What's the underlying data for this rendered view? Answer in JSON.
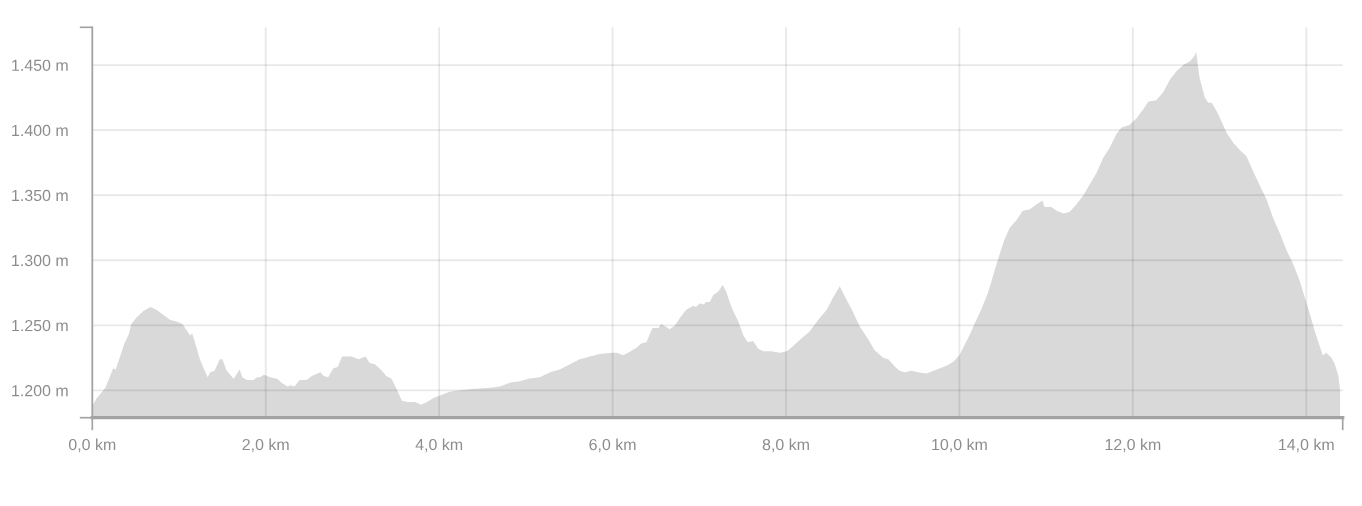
{
  "chart_data": {
    "type": "area",
    "xlim": [
      0,
      14.42
    ],
    "ylim": [
      1179,
      1479
    ],
    "xticks": [
      {
        "value": 0,
        "label": "0,0 km"
      },
      {
        "value": 2,
        "label": "2,0 km"
      },
      {
        "value": 4,
        "label": "4,0 km"
      },
      {
        "value": 6,
        "label": "6,0 km"
      },
      {
        "value": 8,
        "label": "8,0 km"
      },
      {
        "value": 10,
        "label": "10,0 km"
      },
      {
        "value": 12,
        "label": "12,0 km"
      },
      {
        "value": 14,
        "label": "14,0 km"
      },
      {
        "value": 14.42,
        "label": null
      }
    ],
    "yticks": [
      {
        "value": 1179,
        "label": null
      },
      {
        "value": 1200,
        "label": "1.200 m"
      },
      {
        "value": 1250,
        "label": "1.250 m"
      },
      {
        "value": 1300,
        "label": "1.300 m"
      },
      {
        "value": 1350,
        "label": "1.350 m"
      },
      {
        "value": 1400,
        "label": "1.400 m"
      },
      {
        "value": 1450,
        "label": "1.450 m"
      },
      {
        "value": 1479,
        "label": null
      }
    ],
    "grid": true,
    "series": [
      {
        "color": "#d9d9d9",
        "x": [
          0,
          0.05,
          0.09,
          0.15,
          0.2,
          0.24,
          0.27,
          0.32,
          0.37,
          0.42,
          0.45,
          0.51,
          0.59,
          0.67,
          0.74,
          0.82,
          0.9,
          0.97,
          1.04,
          1.07,
          1.11,
          1.13,
          1.15,
          1.18,
          1.24,
          1.29,
          1.33,
          1.36,
          1.41,
          1.47,
          1.5,
          1.55,
          1.63,
          1.66,
          1.7,
          1.73,
          1.78,
          1.86,
          1.9,
          1.93,
          1.98,
          2.05,
          2.13,
          2.18,
          2.25,
          2.29,
          2.33,
          2.39,
          2.47,
          2.53,
          2.63,
          2.67,
          2.72,
          2.78,
          2.83,
          2.88,
          2.99,
          3.07,
          3.15,
          3.2,
          3.26,
          3.34,
          3.39,
          3.45,
          3.51,
          3.57,
          3.64,
          3.72,
          3.79,
          3.86,
          3.93,
          4.01,
          4.12,
          4.24,
          4.39,
          4.59,
          4.7,
          4.82,
          4.93,
          5.03,
          5.16,
          5.28,
          5.39,
          5.51,
          5.62,
          5.74,
          5.85,
          5.99,
          6.05,
          6.12,
          6.18,
          6.28,
          6.33,
          6.39,
          6.46,
          6.53,
          6.56,
          6.61,
          6.66,
          6.72,
          6.78,
          6.85,
          6.93,
          6.96,
          7.01,
          7.05,
          7.08,
          7.12,
          7.16,
          7.22,
          7.27,
          7.31,
          7.35,
          7.39,
          7.45,
          7.51,
          7.56,
          7.62,
          7.68,
          7.74,
          7.83,
          7.93,
          8.01,
          8.08,
          8.18,
          8.27,
          8.37,
          8.47,
          8.54,
          8.62,
          8.68,
          8.76,
          8.85,
          8.95,
          9.02,
          9.12,
          9.18,
          9.26,
          9.31,
          9.37,
          9.45,
          9.52,
          9.62,
          9.74,
          9.85,
          9.93,
          10.0,
          10.06,
          10.12,
          10.18,
          10.25,
          10.33,
          10.41,
          10.47,
          10.52,
          10.58,
          10.66,
          10.73,
          10.81,
          10.89,
          10.96,
          10.98,
          11.06,
          11.12,
          11.2,
          11.27,
          11.35,
          11.43,
          11.5,
          11.58,
          11.66,
          11.73,
          11.81,
          11.87,
          11.96,
          12.04,
          12.12,
          12.18,
          12.27,
          12.35,
          12.43,
          12.5,
          12.58,
          12.66,
          12.71,
          12.73,
          12.77,
          12.83,
          12.87,
          12.91,
          12.98,
          13.08,
          13.16,
          13.23,
          13.31,
          13.39,
          13.46,
          13.54,
          13.62,
          13.7,
          13.77,
          13.85,
          13.93,
          13.98,
          14.04,
          14.1,
          14.16,
          14.19,
          14.23,
          14.29,
          14.33,
          14.37,
          14.39
        ],
        "values": [
          1188,
          1194,
          1197,
          1202,
          1210,
          1217,
          1216,
          1226,
          1236,
          1243,
          1251,
          1256,
          1261,
          1264,
          1262,
          1258,
          1254,
          1253,
          1251,
          1248,
          1244,
          1242,
          1244,
          1238,
          1224,
          1216,
          1210,
          1214,
          1215,
          1224,
          1224,
          1215,
          1209,
          1212,
          1216,
          1210,
          1208,
          1208,
          1210,
          1210,
          1212,
          1210,
          1209,
          1206,
          1203,
          1204,
          1203,
          1208,
          1208,
          1211,
          1214,
          1211,
          1210,
          1217,
          1218,
          1226,
          1226,
          1224,
          1226,
          1221,
          1220,
          1215,
          1211,
          1209,
          1201,
          1192,
          1191,
          1191,
          1189,
          1191,
          1194,
          1196,
          1199,
          1200,
          1201,
          1202,
          1203,
          1206,
          1207,
          1209,
          1210,
          1214,
          1216,
          1220,
          1224,
          1226,
          1228,
          1229,
          1229,
          1227,
          1229,
          1233,
          1236,
          1237,
          1248,
          1248,
          1251,
          1249,
          1247,
          1250,
          1256,
          1262,
          1265,
          1264,
          1267,
          1266,
          1268,
          1268,
          1273,
          1276,
          1281,
          1276,
          1268,
          1261,
          1253,
          1242,
          1237,
          1238,
          1232,
          1230,
          1230,
          1229,
          1230,
          1234,
          1240,
          1245,
          1254,
          1262,
          1271,
          1280,
          1272,
          1262,
          1249,
          1239,
          1231,
          1225,
          1224,
          1218,
          1215,
          1214,
          1215,
          1214,
          1213,
          1216,
          1219,
          1222,
          1227,
          1235,
          1243,
          1252,
          1262,
          1275,
          1293,
          1306,
          1316,
          1325,
          1331,
          1338,
          1339,
          1343,
          1346,
          1341,
          1341,
          1338,
          1336,
          1337,
          1343,
          1350,
          1358,
          1367,
          1379,
          1386,
          1397,
          1402,
          1404,
          1409,
          1416,
          1422,
          1423,
          1429,
          1439,
          1445,
          1450,
          1453,
          1457,
          1460,
          1440,
          1425,
          1421,
          1421,
          1413,
          1398,
          1390,
          1385,
          1380,
          1368,
          1358,
          1347,
          1332,
          1320,
          1308,
          1297,
          1283,
          1272,
          1259,
          1245,
          1233,
          1227,
          1229,
          1225,
          1220,
          1211,
          1200
        ]
      }
    ]
  }
}
